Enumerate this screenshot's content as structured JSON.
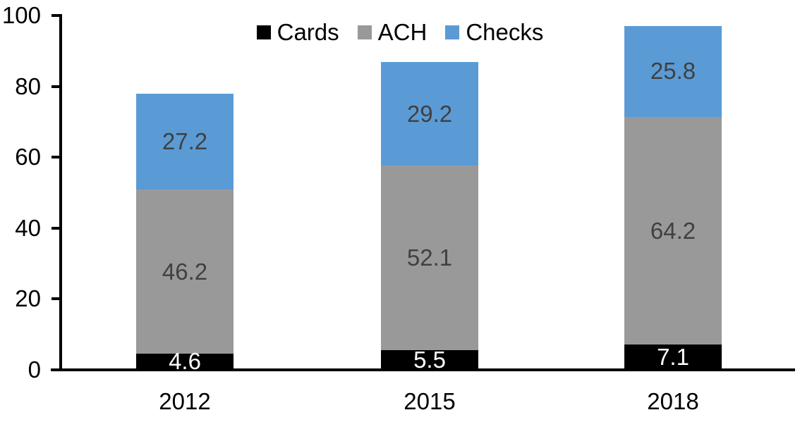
{
  "chart_data": {
    "type": "bar",
    "stacked": true,
    "title": "",
    "categories": [
      "2012",
      "2015",
      "2018"
    ],
    "series": [
      {
        "name": "Cards",
        "color": "#000000",
        "label_color": "#FFFFFF",
        "values": [
          4.6,
          5.5,
          7.1
        ]
      },
      {
        "name": "ACH",
        "color": "#999999",
        "label_color": "#404040",
        "values": [
          46.2,
          52.1,
          64.2
        ]
      },
      {
        "name": "Checks",
        "color": "#5B9BD5",
        "label_color": "#404040",
        "values": [
          27.2,
          29.2,
          25.8
        ]
      }
    ],
    "totals": [
      78.0,
      86.8,
      97.1
    ],
    "xlabel": "",
    "ylabel": "",
    "ylim": [
      0,
      100
    ],
    "yticks": [
      0,
      20,
      40,
      60,
      80,
      100
    ],
    "grid": false,
    "legend_position": "top",
    "axis_color": "#000000",
    "background_color": "#FFFFFF"
  }
}
